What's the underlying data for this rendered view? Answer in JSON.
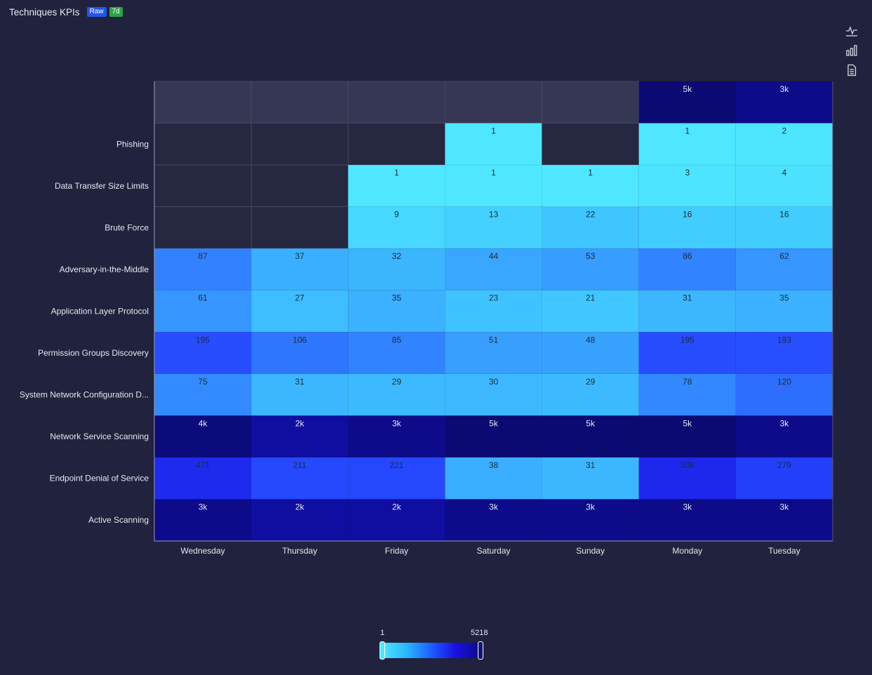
{
  "header": {
    "title": "Techniques KPIs",
    "badge_raw": "Raw",
    "badge_range": "7d"
  },
  "toolbar": {
    "icons": [
      "activity-line-icon",
      "bar-chart-icon",
      "document-icon"
    ]
  },
  "colors": {
    "background": "#21223d",
    "empty_cell_light": "#363754",
    "empty_cell_dark": "#262741",
    "scale_low": "#4fe7ff",
    "scale_high": "#0c0b8a"
  },
  "legend": {
    "min_label": "1",
    "max_label": "5218"
  },
  "chart_data": {
    "type": "heatmap",
    "title": "Techniques KPIs",
    "x": [
      "Wednesday",
      "Thursday",
      "Friday",
      "Saturday",
      "Sunday",
      "Monday",
      "Tuesday"
    ],
    "y": [
      "",
      "Phishing",
      "Data Transfer Size Limits",
      "Brute Force",
      "Adversary-in-the-Middle",
      "Application Layer Protocol",
      "Permission Groups Discovery",
      "System Network Configuration D...",
      "Network Service Scanning",
      "Endpoint Denial of Service",
      "Active Scanning"
    ],
    "values": [
      [
        null,
        null,
        null,
        null,
        null,
        5000,
        3000
      ],
      [
        null,
        null,
        null,
        1,
        null,
        1,
        2
      ],
      [
        null,
        null,
        1,
        1,
        1,
        3,
        4
      ],
      [
        null,
        null,
        9,
        13,
        22,
        16,
        16
      ],
      [
        87,
        37,
        32,
        44,
        53,
        86,
        62
      ],
      [
        61,
        27,
        35,
        23,
        21,
        31,
        35
      ],
      [
        195,
        106,
        85,
        51,
        48,
        195,
        193
      ],
      [
        75,
        31,
        29,
        30,
        29,
        78,
        120
      ],
      [
        4000,
        2000,
        3000,
        5000,
        5000,
        5000,
        3000
      ],
      [
        471,
        211,
        221,
        38,
        31,
        508,
        279
      ],
      [
        3000,
        2000,
        2000,
        3000,
        3000,
        3000,
        3000
      ]
    ],
    "labels": [
      [
        "",
        "",
        "",
        "",
        "",
        "5k",
        "3k"
      ],
      [
        "",
        "",
        "",
        "1",
        "",
        "1",
        "2"
      ],
      [
        "",
        "",
        "1",
        "1",
        "1",
        "3",
        "4"
      ],
      [
        "",
        "",
        "9",
        "13",
        "22",
        "16",
        "16"
      ],
      [
        "87",
        "37",
        "32",
        "44",
        "53",
        "86",
        "62"
      ],
      [
        "61",
        "27",
        "35",
        "23",
        "21",
        "31",
        "35"
      ],
      [
        "195",
        "106",
        "85",
        "51",
        "48",
        "195",
        "193"
      ],
      [
        "75",
        "31",
        "29",
        "30",
        "29",
        "78",
        "120"
      ],
      [
        "4k",
        "2k",
        "3k",
        "5k",
        "5k",
        "5k",
        "3k"
      ],
      [
        "471",
        "211",
        "221",
        "38",
        "31",
        "508",
        "279"
      ],
      [
        "3k",
        "2k",
        "2k",
        "3k",
        "3k",
        "3k",
        "3k"
      ]
    ],
    "color_range": [
      1,
      5218
    ]
  }
}
